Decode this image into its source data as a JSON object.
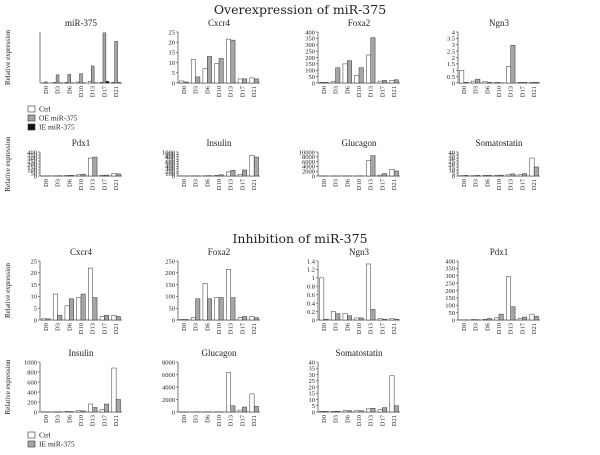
{
  "sections": {
    "overexpression_title": "Overexpression of miR-375",
    "inhibition_title": "Inhibition of miR-375"
  },
  "legends": {
    "overexpression": [
      {
        "label": "Ctrl",
        "color": "#ffffff"
      },
      {
        "label": "OE miR-375",
        "color": "#a6a6a6"
      },
      {
        "label": "IE miR-375",
        "color": "#111111"
      }
    ],
    "inhibition": [
      {
        "label": "Ctrl",
        "color": "#ffffff"
      },
      {
        "label": "IE miR-375",
        "color": "#a6a6a6"
      }
    ]
  },
  "chart_data": [
    {
      "type": "bar",
      "title": "miR-375",
      "section": "overexpression",
      "ylabel": "Relative expression",
      "categories": [
        "D0",
        "D3",
        "D6",
        "D10",
        "D13",
        "D17",
        "D21"
      ],
      "ylim": [
        0,
        3000
      ],
      "yticks": [],
      "series": [
        {
          "name": "Ctrl",
          "values": [
            5,
            30,
            40,
            60,
            80,
            40,
            30
          ]
        },
        {
          "name": "OE miR-375",
          "values": [
            60,
            480,
            500,
            550,
            1000,
            2950,
            2450
          ]
        },
        {
          "name": "IE miR-375",
          "values": [
            0,
            5,
            5,
            8,
            10,
            100,
            30
          ]
        }
      ]
    },
    {
      "type": "bar",
      "title": "Cxcr4",
      "section": "overexpression",
      "ylabel": "",
      "categories": [
        "D0",
        "D3",
        "D6",
        "D10",
        "D13",
        "D17",
        "D21"
      ],
      "ylim": [
        0,
        25
      ],
      "yticks": [
        0,
        5,
        10,
        15,
        20,
        25
      ],
      "series": [
        {
          "name": "Ctrl",
          "values": [
            1,
            11.5,
            7,
            9.5,
            21.5,
            2,
            2.5
          ]
        },
        {
          "name": "OE miR-375",
          "values": [
            0.5,
            3,
            13,
            12,
            21,
            2,
            2
          ]
        }
      ]
    },
    {
      "type": "bar",
      "title": "Foxa2",
      "section": "overexpression",
      "ylabel": "",
      "categories": [
        "D0",
        "D3",
        "D6",
        "D10",
        "D13",
        "D17",
        "D21"
      ],
      "ylim": [
        0,
        400
      ],
      "yticks": [
        0,
        50,
        100,
        150,
        200,
        250,
        300,
        350,
        400
      ],
      "series": [
        {
          "name": "Ctrl",
          "values": [
            5,
            10,
            150,
            60,
            220,
            15,
            20
          ]
        },
        {
          "name": "OE miR-375",
          "values": [
            5,
            120,
            175,
            120,
            355,
            20,
            25
          ]
        }
      ]
    },
    {
      "type": "bar",
      "title": "Ngn3",
      "section": "overexpression",
      "ylabel": "",
      "categories": [
        "D0",
        "D3",
        "D6",
        "D10",
        "D13",
        "D17",
        "D21"
      ],
      "ylim": [
        0,
        4
      ],
      "yticks": [
        0,
        0.5,
        1,
        1.5,
        2,
        2.5,
        3,
        3.5,
        4
      ],
      "series": [
        {
          "name": "Ctrl",
          "values": [
            1,
            0.15,
            0.1,
            0.05,
            1.3,
            0.05,
            0.05
          ]
        },
        {
          "name": "OE miR-375",
          "values": [
            0.05,
            0.3,
            0.05,
            0.02,
            2.95,
            0.05,
            0.05
          ]
        }
      ]
    },
    {
      "type": "bar",
      "title": "Pdx1",
      "section": "overexpression",
      "ylabel": "Relative expression",
      "categories": [
        "D0",
        "D3",
        "D6",
        "D10",
        "D13",
        "D17",
        "D21"
      ],
      "ylim": [
        0,
        400
      ],
      "yticks": [
        0,
        50,
        100,
        150,
        200,
        250,
        300,
        350,
        400
      ],
      "series": [
        {
          "name": "Ctrl",
          "values": [
            2,
            3,
            8,
            20,
            300,
            10,
            40
          ]
        },
        {
          "name": "OE miR-375",
          "values": [
            1,
            5,
            12,
            30,
            315,
            15,
            35
          ]
        }
      ]
    },
    {
      "type": "bar",
      "title": "Insulin",
      "section": "overexpression",
      "ylabel": "",
      "categories": [
        "D0",
        "D3",
        "D6",
        "D10",
        "D13",
        "D17",
        "D21"
      ],
      "ylim": [
        0,
        1000
      ],
      "yticks": [
        0,
        100,
        200,
        300,
        400,
        500,
        600,
        700,
        800,
        900,
        1000
      ],
      "series": [
        {
          "name": "Ctrl",
          "values": [
            2,
            5,
            10,
            30,
            170,
            60,
            860
          ]
        },
        {
          "name": "OE miR-375",
          "values": [
            3,
            8,
            15,
            50,
            240,
            250,
            790
          ]
        }
      ]
    },
    {
      "type": "bar",
      "title": "Glucagon",
      "section": "overexpression",
      "ylabel": "",
      "categories": [
        "D0",
        "D3",
        "D6",
        "D10",
        "D13",
        "D17",
        "D21"
      ],
      "ylim": [
        0,
        10000
      ],
      "yticks": [
        0,
        2000,
        4000,
        6000,
        8000,
        10000
      ],
      "series": [
        {
          "name": "Ctrl",
          "values": [
            5,
            10,
            20,
            30,
            6400,
            400,
            2800
          ]
        },
        {
          "name": "OE miR-375",
          "values": [
            5,
            15,
            25,
            40,
            8500,
            1000,
            2100
          ]
        }
      ]
    },
    {
      "type": "bar",
      "title": "Somatostatin",
      "section": "overexpression",
      "ylabel": "",
      "categories": [
        "D0",
        "D3",
        "D6",
        "D10",
        "D13",
        "D17",
        "D21"
      ],
      "ylim": [
        0,
        40
      ],
      "yticks": [
        0,
        5,
        10,
        15,
        20,
        25,
        30,
        35,
        40
      ],
      "series": [
        {
          "name": "Ctrl",
          "values": [
            0.5,
            0.5,
            1,
            1,
            2,
            2,
            30
          ]
        },
        {
          "name": "OE miR-375",
          "values": [
            1,
            1,
            1,
            1.5,
            3.5,
            4,
            15
          ]
        }
      ]
    },
    {
      "type": "bar",
      "title": "Cxcr4",
      "section": "inhibition",
      "ylabel": "Relative expression",
      "categories": [
        "D0",
        "D3",
        "D6",
        "D10",
        "D13",
        "D17",
        "D21"
      ],
      "ylim": [
        0,
        25
      ],
      "yticks": [
        0,
        5,
        10,
        15,
        20,
        25
      ],
      "series": [
        {
          "name": "Ctrl",
          "values": [
            0.5,
            11,
            6,
            9.5,
            22,
            1.5,
            2
          ]
        },
        {
          "name": "IE miR-375",
          "values": [
            0.5,
            2,
            9,
            11,
            9.5,
            2,
            1.5
          ]
        }
      ]
    },
    {
      "type": "bar",
      "title": "Foxa2",
      "section": "inhibition",
      "ylabel": "",
      "categories": [
        "D0",
        "D3",
        "D6",
        "D10",
        "D13",
        "D17",
        "D21"
      ],
      "ylim": [
        0,
        250
      ],
      "yticks": [
        0,
        50,
        100,
        150,
        200,
        250
      ],
      "series": [
        {
          "name": "Ctrl",
          "values": [
            2,
            10,
            155,
            95,
            215,
            10,
            15
          ]
        },
        {
          "name": "IE miR-375",
          "values": [
            2,
            90,
            90,
            95,
            95,
            15,
            10
          ]
        }
      ]
    },
    {
      "type": "bar",
      "title": "Ngn3",
      "section": "inhibition",
      "ylabel": "",
      "categories": [
        "D0",
        "D3",
        "D6",
        "D10",
        "D13",
        "D17",
        "D21"
      ],
      "ylim": [
        0,
        1.4
      ],
      "yticks": [
        0,
        0.2,
        0.4,
        0.6,
        0.8,
        1,
        1.2,
        1.4
      ],
      "series": [
        {
          "name": "Ctrl",
          "values": [
            1,
            0.2,
            0.15,
            0.05,
            1.33,
            0.03,
            0.03
          ]
        },
        {
          "name": "IE miR-375",
          "values": [
            0.02,
            0.15,
            0.1,
            0.05,
            0.25,
            0.02,
            0.02
          ]
        }
      ]
    },
    {
      "type": "bar",
      "title": "Pdx1",
      "section": "inhibition",
      "ylabel": "",
      "categories": [
        "D0",
        "D3",
        "D6",
        "D10",
        "D13",
        "D17",
        "D21"
      ],
      "ylim": [
        0,
        400
      ],
      "yticks": [
        0,
        50,
        100,
        150,
        200,
        250,
        300,
        350,
        400
      ],
      "series": [
        {
          "name": "Ctrl",
          "values": [
            1,
            3,
            5,
            15,
            295,
            10,
            40
          ]
        },
        {
          "name": "IE miR-375",
          "values": [
            1,
            2,
            10,
            40,
            90,
            20,
            25
          ]
        }
      ]
    },
    {
      "type": "bar",
      "title": "Insulin",
      "section": "inhibition",
      "ylabel": "Relative expression",
      "categories": [
        "D0",
        "D3",
        "D6",
        "D10",
        "D13",
        "D17",
        "D21"
      ],
      "ylim": [
        0,
        1000
      ],
      "yticks": [
        0,
        200,
        400,
        600,
        800,
        1000
      ],
      "series": [
        {
          "name": "Ctrl",
          "values": [
            2,
            5,
            10,
            30,
            160,
            50,
            880
          ]
        },
        {
          "name": "IE miR-375",
          "values": [
            2,
            5,
            8,
            20,
            90,
            160,
            250
          ]
        }
      ]
    },
    {
      "type": "bar",
      "title": "Glucagon",
      "section": "inhibition",
      "ylabel": "",
      "categories": [
        "D0",
        "D3",
        "D6",
        "D10",
        "D13",
        "D17",
        "D21"
      ],
      "ylim": [
        0,
        8000
      ],
      "yticks": [
        0,
        2000,
        4000,
        6000,
        8000
      ],
      "series": [
        {
          "name": "Ctrl",
          "values": [
            5,
            10,
            20,
            30,
            6300,
            300,
            2900
          ]
        },
        {
          "name": "IE miR-375",
          "values": [
            5,
            10,
            15,
            20,
            1000,
            800,
            900
          ]
        }
      ]
    },
    {
      "type": "bar",
      "title": "Somatostatin",
      "section": "inhibition",
      "ylabel": "",
      "categories": [
        "D0",
        "D3",
        "D6",
        "D10",
        "D13",
        "D17",
        "D21"
      ],
      "ylim": [
        0,
        40
      ],
      "yticks": [
        0,
        5,
        10,
        15,
        20,
        25,
        30,
        35,
        40
      ],
      "series": [
        {
          "name": "Ctrl",
          "values": [
            0.5,
            0.5,
            1,
            1,
            2.5,
            2,
            29
          ]
        },
        {
          "name": "IE miR-375",
          "values": [
            0.5,
            0.5,
            1,
            1,
            3,
            3.5,
            5
          ]
        }
      ]
    }
  ]
}
